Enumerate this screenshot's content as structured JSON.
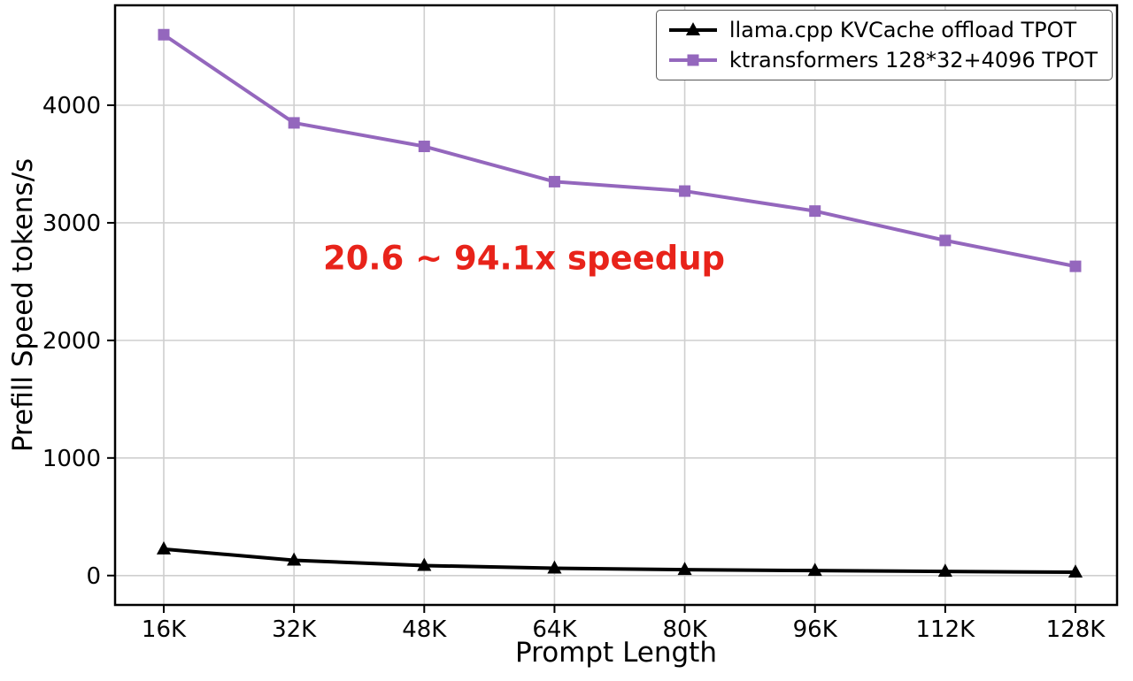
{
  "chart_data": {
    "type": "line",
    "title": "",
    "xlabel": "Prompt Length",
    "ylabel": "Prefill Speed tokens/s",
    "categories": [
      "16K",
      "32K",
      "48K",
      "64K",
      "80K",
      "96K",
      "112K",
      "128K"
    ],
    "series": [
      {
        "name": "llama.cpp KVCache offload TPOT",
        "color": "#000000",
        "marker": "triangle",
        "values": [
          225,
          130,
          85,
          62,
          50,
          42,
          35,
          28
        ]
      },
      {
        "name": "ktransformers 128*32+4096 TPOT",
        "color": "#9467bd",
        "marker": "square",
        "values": [
          4600,
          3850,
          3650,
          3350,
          3270,
          3100,
          2850,
          2630
        ]
      }
    ],
    "yticks": [
      0,
      1000,
      2000,
      3000,
      4000
    ],
    "ylim": [
      -250,
      4850
    ],
    "grid": true,
    "legend_position": "top-right",
    "annotation": {
      "text": "20.6 ~ 94.1x speedup",
      "color": "#e8231a"
    },
    "colors": {
      "grid": "#cfcfcf",
      "axis": "#000000",
      "tick_label": "#000000"
    }
  }
}
